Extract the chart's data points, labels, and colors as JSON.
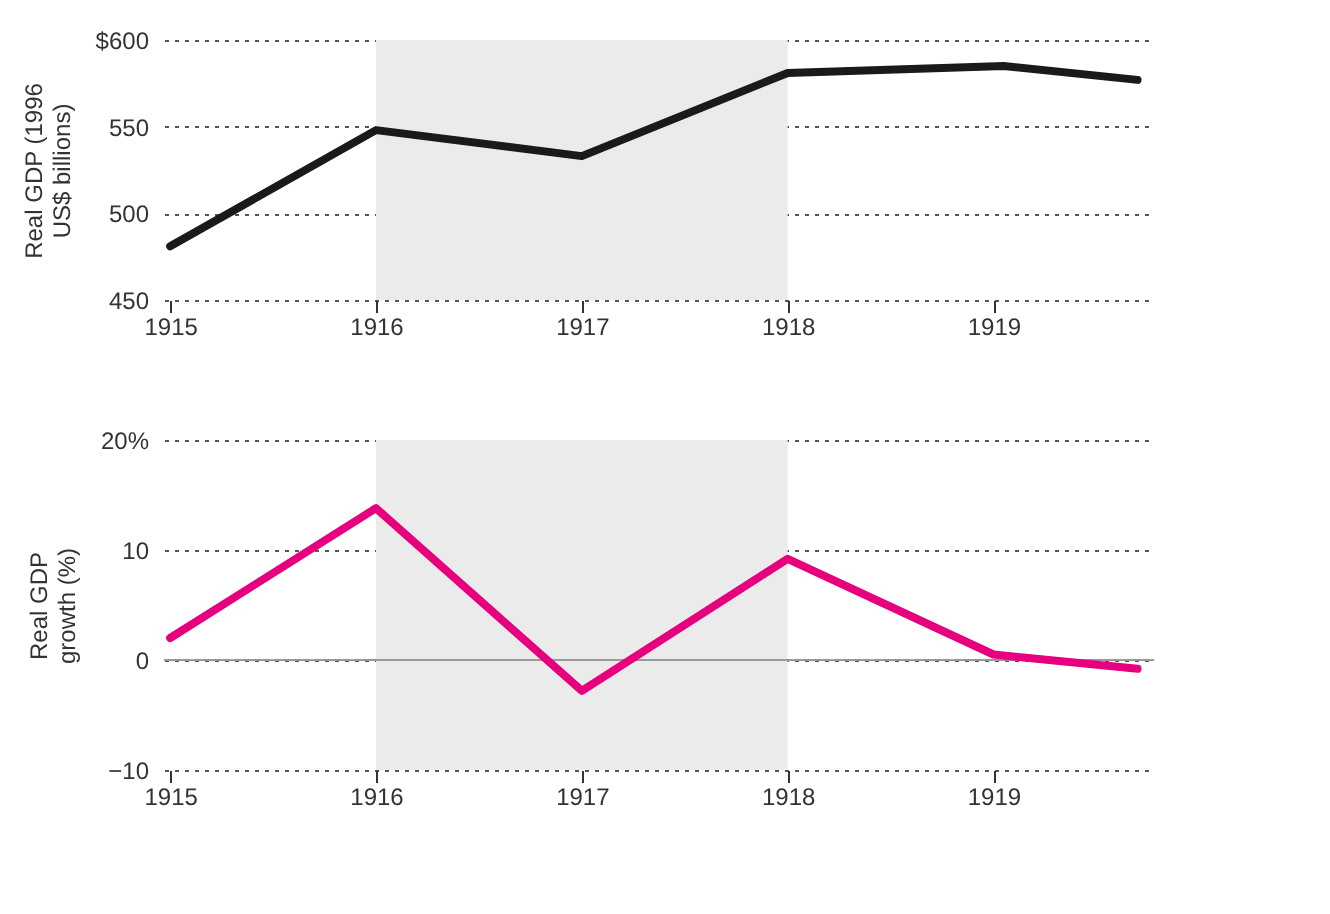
{
  "chart_data": [
    {
      "type": "line",
      "ylabel": "Real GDP (1996 US$ billions)",
      "x": [
        1915,
        1916,
        1917,
        1918,
        1919.05,
        1919.7
      ],
      "series": [
        {
          "color": "#1a1a1a",
          "values": [
            481,
            548,
            533,
            581,
            585,
            577
          ]
        }
      ],
      "xlim": [
        1914.97,
        1919.78
      ],
      "xticks": [
        1915,
        1916,
        1917,
        1918,
        1919
      ],
      "ylim": [
        450,
        600
      ],
      "yticks": [
        {
          "value": 600,
          "label": "$600"
        },
        550,
        500,
        450
      ],
      "grid": "y",
      "bands": [
        {
          "axis": "x",
          "from": 1916,
          "to": 1918,
          "color": "#ebebeb"
        }
      ]
    },
    {
      "type": "line",
      "ylabel": "Real GDP growth (%)",
      "x": [
        1915,
        1916,
        1917,
        1918,
        1919,
        1919.7
      ],
      "series": [
        {
          "color": "#e6007e",
          "values": [
            2,
            13.8,
            -2.8,
            9.2,
            0.5,
            -0.8
          ]
        }
      ],
      "xlim": [
        1914.97,
        1919.78
      ],
      "xticks": [
        1915,
        1916,
        1917,
        1918,
        1919
      ],
      "ylim": [
        -10,
        20
      ],
      "yticks": [
        {
          "value": 20,
          "label": "20%"
        },
        10,
        0,
        -10
      ],
      "grid": "y",
      "ref_lines": [
        {
          "axis": "y",
          "value": 0,
          "color": "#999999"
        }
      ],
      "bands": [
        {
          "axis": "x",
          "from": 1916,
          "to": 1918,
          "color": "#ebebeb"
        }
      ]
    }
  ]
}
